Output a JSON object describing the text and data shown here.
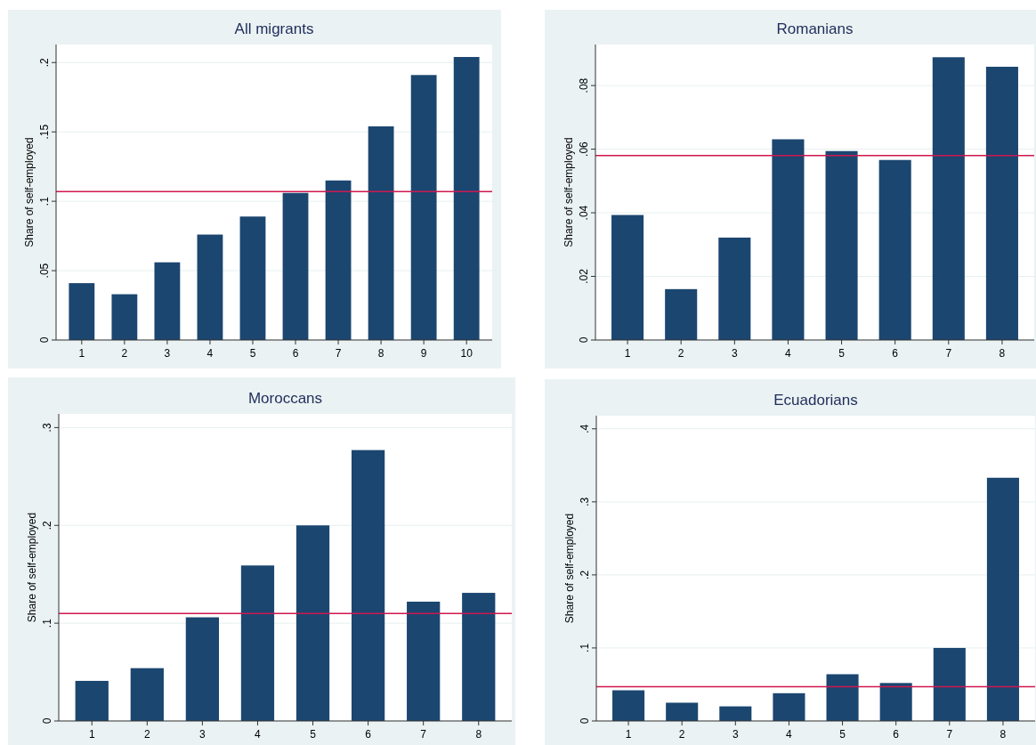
{
  "chart_data": [
    {
      "type": "bar",
      "title": "All migrants",
      "ylabel": "Share of self-employed",
      "categories": [
        "1",
        "2",
        "3",
        "4",
        "5",
        "6",
        "7",
        "8",
        "9",
        "10"
      ],
      "series": [
        {
          "color": "#1b4670",
          "values": [
            0.041,
            0.033,
            0.056,
            0.076,
            0.089,
            0.106,
            0.115,
            0.154,
            0.191,
            0.204
          ]
        }
      ],
      "ylim": [
        0,
        0.213
      ],
      "yticks": [
        {
          "value": 0,
          "label": "0"
        },
        {
          "value": 0.05,
          "label": ".05"
        },
        {
          "value": 0.1,
          "label": ".1"
        },
        {
          "value": 0.15,
          "label": ".15"
        },
        {
          "value": 0.2,
          "label": ".2"
        }
      ],
      "ref_lines": [
        {
          "axis": "y",
          "value": 0.107,
          "color": "#d0174f"
        }
      ],
      "grid": "y"
    },
    {
      "type": "bar",
      "title": "Romanians",
      "ylabel": "Share of self-employed",
      "categories": [
        "1",
        "2",
        "3",
        "4",
        "5",
        "6",
        "7",
        "8"
      ],
      "series": [
        {
          "color": "#1b4670",
          "values": [
            0.0393,
            0.016,
            0.0322,
            0.0631,
            0.0594,
            0.0566,
            0.0889,
            0.0859
          ]
        }
      ],
      "ylim": [
        0,
        0.0929
      ],
      "yticks": [
        {
          "value": 0,
          "label": "0"
        },
        {
          "value": 0.02,
          "label": ".02"
        },
        {
          "value": 0.04,
          "label": ".04"
        },
        {
          "value": 0.06,
          "label": ".06"
        },
        {
          "value": 0.08,
          "label": ".08"
        }
      ],
      "ref_lines": [
        {
          "axis": "y",
          "value": 0.058,
          "color": "#d0174f"
        }
      ],
      "grid": "y"
    },
    {
      "type": "bar",
      "title": "Moroccans",
      "ylabel": "Share of self-employed",
      "categories": [
        "1",
        "2",
        "3",
        "4",
        "5",
        "6",
        "7",
        "8"
      ],
      "series": [
        {
          "color": "#1b4670",
          "values": [
            0.041,
            0.054,
            0.106,
            0.159,
            0.2,
            0.277,
            0.122,
            0.131
          ]
        }
      ],
      "ylim": [
        0,
        0.314
      ],
      "yticks": [
        {
          "value": 0,
          "label": "0"
        },
        {
          "value": 0.1,
          "label": ".1"
        },
        {
          "value": 0.2,
          "label": ".2"
        },
        {
          "value": 0.3,
          "label": ".3"
        }
      ],
      "ref_lines": [
        {
          "axis": "y",
          "value": 0.11,
          "color": "#d0174f"
        }
      ],
      "grid": "y"
    },
    {
      "type": "bar",
      "title": "Ecuadorians",
      "ylabel": "Share of self-employed",
      "categories": [
        "1",
        "2",
        "3",
        "4",
        "5",
        "6",
        "7",
        "8"
      ],
      "series": [
        {
          "color": "#1b4670",
          "values": [
            0.042,
            0.025,
            0.02,
            0.038,
            0.064,
            0.052,
            0.1,
            0.333
          ]
        }
      ],
      "ylim": [
        0,
        0.418
      ],
      "yticks": [
        {
          "value": 0,
          "label": "0"
        },
        {
          "value": 0.1,
          "label": ".1"
        },
        {
          "value": 0.2,
          "label": ".2"
        },
        {
          "value": 0.3,
          "label": ".3"
        },
        {
          "value": 0.4,
          "label": ".4"
        }
      ],
      "ref_lines": [
        {
          "axis": "y",
          "value": 0.047,
          "color": "#d0174f"
        }
      ],
      "grid": "y"
    }
  ]
}
